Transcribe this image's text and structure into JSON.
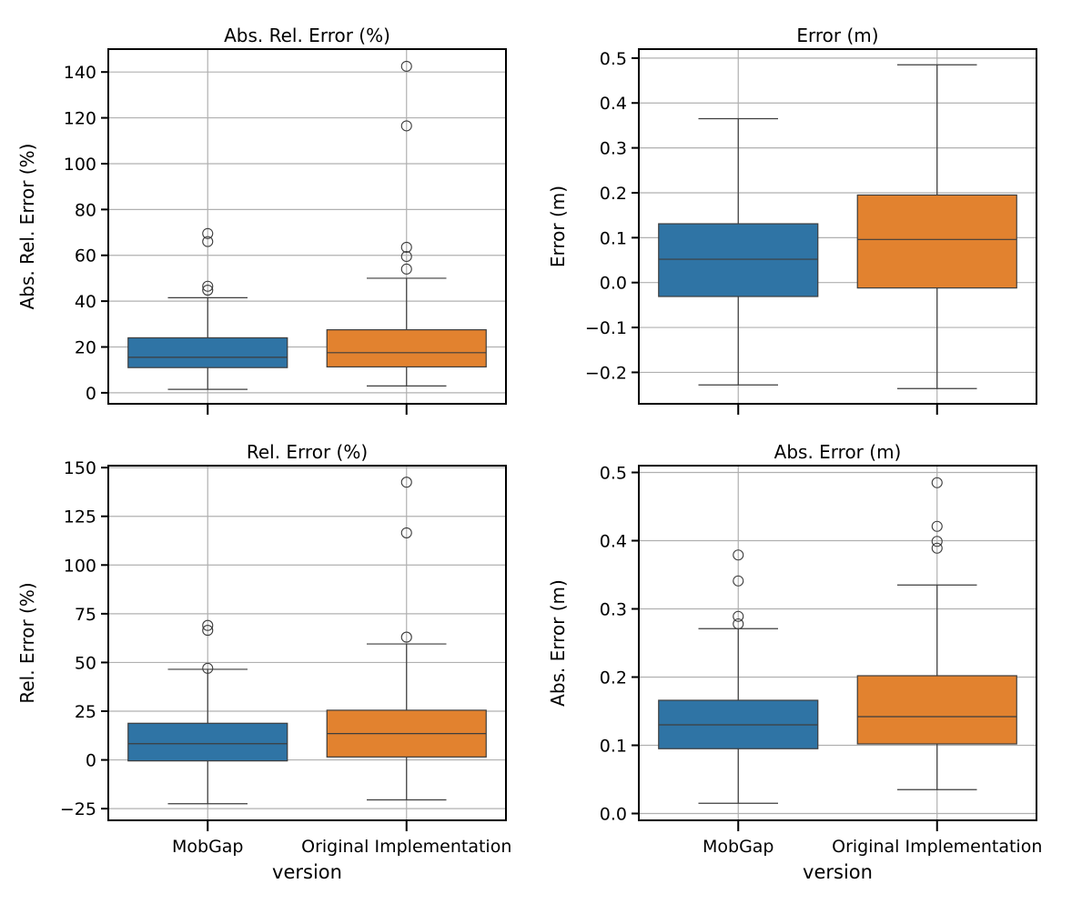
{
  "chart_data": [
    {
      "type": "box",
      "title": "Abs. Rel. Error (%)",
      "ylabel": "Abs. Rel. Error (%)",
      "xlabel": "",
      "ylim": [
        -4.8,
        150
      ],
      "yticks": [
        0,
        20,
        40,
        60,
        80,
        100,
        120,
        140
      ],
      "yticklabels": [
        "0",
        "20",
        "40",
        "60",
        "80",
        "100",
        "120",
        "140"
      ],
      "categories": [
        "MobGap",
        "Original Implementation"
      ],
      "show_xticklabels": false,
      "grid": true,
      "series": [
        {
          "whisker_low": 1.5,
          "q1": 11,
          "median": 15.5,
          "q3": 24,
          "whisker_high": 41.5,
          "outliers": [
            44.8,
            46.5,
            66,
            69.5
          ],
          "color": "#2f74a5"
        },
        {
          "whisker_low": 3,
          "q1": 11.3,
          "median": 17.5,
          "q3": 27.5,
          "whisker_high": 50,
          "outliers": [
            54,
            59.5,
            63.5,
            116.5,
            142.5
          ],
          "color": "#e2822f"
        }
      ]
    },
    {
      "type": "box",
      "title": "Error (m)",
      "ylabel": "Error (m)",
      "xlabel": "",
      "ylim": [
        -0.27,
        0.52
      ],
      "yticks": [
        -0.2,
        -0.1,
        0.0,
        0.1,
        0.2,
        0.3,
        0.4,
        0.5
      ],
      "yticklabels": [
        "−0.2",
        "−0.1",
        "0.0",
        "0.1",
        "0.2",
        "0.3",
        "0.4",
        "0.5"
      ],
      "categories": [
        "MobGap",
        "Original Implementation"
      ],
      "show_xticklabels": false,
      "grid": true,
      "series": [
        {
          "whisker_low": -0.228,
          "q1": -0.031,
          "median": 0.052,
          "q3": 0.131,
          "whisker_high": 0.365,
          "outliers": [],
          "color": "#2f74a5"
        },
        {
          "whisker_low": -0.236,
          "q1": -0.012,
          "median": 0.096,
          "q3": 0.195,
          "whisker_high": 0.485,
          "outliers": [],
          "color": "#e2822f"
        }
      ]
    },
    {
      "type": "box",
      "title": "Rel. Error (%)",
      "ylabel": "Rel. Error (%)",
      "xlabel": "version",
      "ylim": [
        -31,
        151
      ],
      "yticks": [
        -25,
        0,
        25,
        50,
        75,
        100,
        125,
        150
      ],
      "yticklabels": [
        "−25",
        "0",
        "25",
        "50",
        "75",
        "100",
        "125",
        "150"
      ],
      "categories": [
        "MobGap",
        "Original Implementation"
      ],
      "show_xticklabels": true,
      "grid": true,
      "series": [
        {
          "whisker_low": -22.5,
          "q1": -0.5,
          "median": 8.3,
          "q3": 18.8,
          "whisker_high": 46.5,
          "outliers": [
            47,
            66.5,
            69
          ],
          "color": "#2f74a5"
        },
        {
          "whisker_low": -20.5,
          "q1": 1.5,
          "median": 13.5,
          "q3": 25.5,
          "whisker_high": 59.5,
          "outliers": [
            63,
            116.5,
            142.5
          ],
          "color": "#e2822f"
        }
      ]
    },
    {
      "type": "box",
      "title": "Abs. Error (m)",
      "ylabel": "Abs. Error (m)",
      "xlabel": "version",
      "ylim": [
        -0.01,
        0.51
      ],
      "yticks": [
        0.0,
        0.1,
        0.2,
        0.3,
        0.4,
        0.5
      ],
      "yticklabels": [
        "0.0",
        "0.1",
        "0.2",
        "0.3",
        "0.4",
        "0.5"
      ],
      "categories": [
        "MobGap",
        "Original Implementation"
      ],
      "show_xticklabels": true,
      "grid": true,
      "series": [
        {
          "whisker_low": 0.015,
          "q1": 0.095,
          "median": 0.13,
          "q3": 0.166,
          "whisker_high": 0.271,
          "outliers": [
            0.278,
            0.289,
            0.341,
            0.379
          ],
          "color": "#2f74a5"
        },
        {
          "whisker_low": 0.035,
          "q1": 0.102,
          "median": 0.142,
          "q3": 0.202,
          "whisker_high": 0.335,
          "outliers": [
            0.389,
            0.399,
            0.421,
            0.485
          ],
          "color": "#e2822f"
        }
      ]
    }
  ]
}
